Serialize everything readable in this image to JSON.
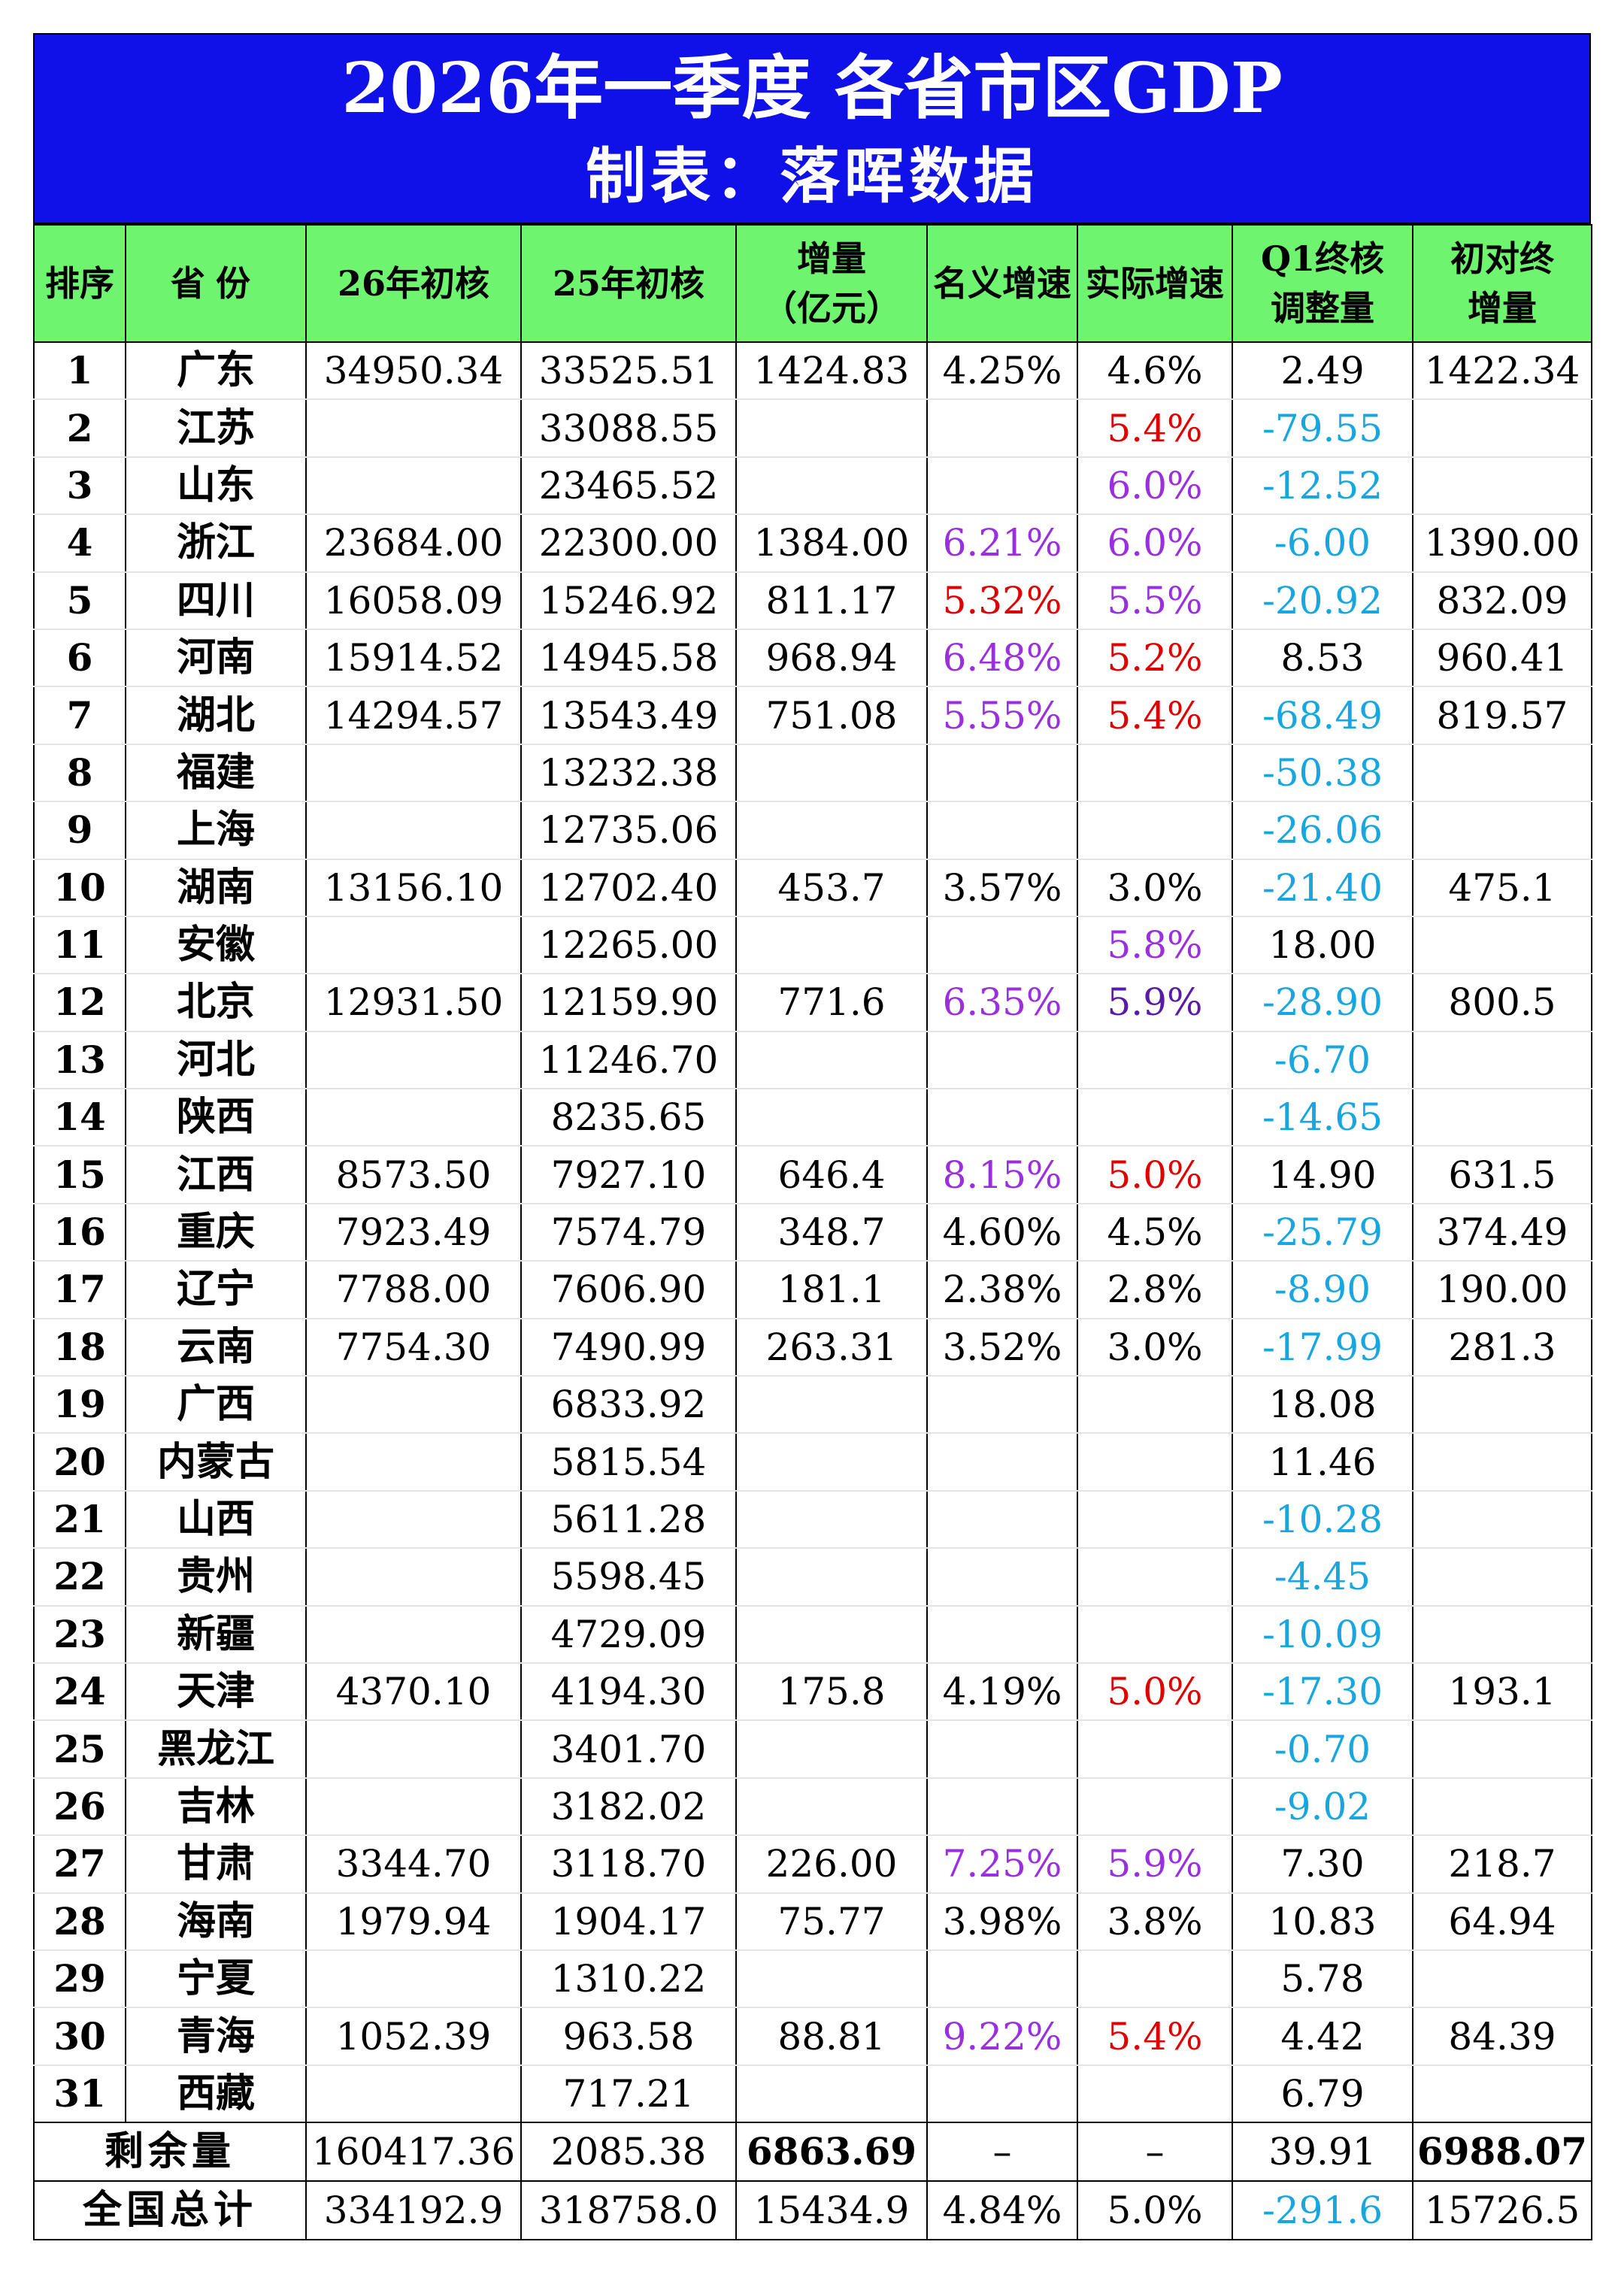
{
  "header": {
    "title": "2026年一季度 各省市区GDP",
    "subtitle": "制表：落晖数据"
  },
  "columns": {
    "rank": "排序",
    "province": "省份",
    "gdp26": "26年初核",
    "gdp25": "25年初核",
    "increase_l1": "增量",
    "increase_l2": "（亿元）",
    "nominal": "名义增速",
    "real": "实际增速",
    "adj_l1": "Q1终核",
    "adj_l2": "调整量",
    "final_l1": "初对终",
    "final_l2": "增量"
  },
  "colors": {
    "header_bg": "#1010e8",
    "column_header_bg": "#6ef46e",
    "red": "#e00000",
    "purple": "#9b2fe0",
    "dark_purple": "#5a1aa8",
    "blue": "#17a7e0"
  },
  "rows": [
    {
      "rank": "1",
      "name": "广东",
      "gdp26": "34950.34",
      "gdp25": "33525.51",
      "inc": "1424.83",
      "nom": "4.25%",
      "nom_c": "black",
      "real": "4.6%",
      "real_c": "black",
      "adj": "2.49",
      "adj_c": "black",
      "fin": "1422.34"
    },
    {
      "rank": "2",
      "name": "江苏",
      "gdp26": "",
      "gdp25": "33088.55",
      "inc": "",
      "nom": "",
      "nom_c": "black",
      "real": "5.4%",
      "real_c": "red",
      "adj": "-79.55",
      "adj_c": "blue",
      "fin": ""
    },
    {
      "rank": "3",
      "name": "山东",
      "gdp26": "",
      "gdp25": "23465.52",
      "inc": "",
      "nom": "",
      "nom_c": "black",
      "real": "6.0%",
      "real_c": "purple",
      "adj": "-12.52",
      "adj_c": "blue",
      "fin": ""
    },
    {
      "rank": "4",
      "name": "浙江",
      "gdp26": "23684.00",
      "gdp25": "22300.00",
      "inc": "1384.00",
      "nom": "6.21%",
      "nom_c": "purple",
      "real": "6.0%",
      "real_c": "purple",
      "adj": "-6.00",
      "adj_c": "blue",
      "fin": "1390.00"
    },
    {
      "rank": "5",
      "name": "四川",
      "gdp26": "16058.09",
      "gdp25": "15246.92",
      "inc": "811.17",
      "nom": "5.32%",
      "nom_c": "red",
      "real": "5.5%",
      "real_c": "purple",
      "adj": "-20.92",
      "adj_c": "blue",
      "fin": "832.09"
    },
    {
      "rank": "6",
      "name": "河南",
      "gdp26": "15914.52",
      "gdp25": "14945.58",
      "inc": "968.94",
      "nom": "6.48%",
      "nom_c": "purple",
      "real": "5.2%",
      "real_c": "red",
      "adj": "8.53",
      "adj_c": "black",
      "fin": "960.41"
    },
    {
      "rank": "7",
      "name": "湖北",
      "gdp26": "14294.57",
      "gdp25": "13543.49",
      "inc": "751.08",
      "nom": "5.55%",
      "nom_c": "purple",
      "real": "5.4%",
      "real_c": "red",
      "adj": "-68.49",
      "adj_c": "blue",
      "fin": "819.57"
    },
    {
      "rank": "8",
      "name": "福建",
      "gdp26": "",
      "gdp25": "13232.38",
      "inc": "",
      "nom": "",
      "nom_c": "black",
      "real": "",
      "real_c": "black",
      "adj": "-50.38",
      "adj_c": "blue",
      "fin": ""
    },
    {
      "rank": "9",
      "name": "上海",
      "gdp26": "",
      "gdp25": "12735.06",
      "inc": "",
      "nom": "",
      "nom_c": "black",
      "real": "",
      "real_c": "black",
      "adj": "-26.06",
      "adj_c": "blue",
      "fin": ""
    },
    {
      "rank": "10",
      "name": "湖南",
      "gdp26": "13156.10",
      "gdp25": "12702.40",
      "inc": "453.7",
      "nom": "3.57%",
      "nom_c": "black",
      "real": "3.0%",
      "real_c": "black",
      "adj": "-21.40",
      "adj_c": "blue",
      "fin": "475.1"
    },
    {
      "rank": "11",
      "name": "安徽",
      "gdp26": "",
      "gdp25": "12265.00",
      "inc": "",
      "nom": "",
      "nom_c": "black",
      "real": "5.8%",
      "real_c": "purple",
      "adj": "18.00",
      "adj_c": "black",
      "fin": ""
    },
    {
      "rank": "12",
      "name": "北京",
      "gdp26": "12931.50",
      "gdp25": "12159.90",
      "inc": "771.6",
      "nom": "6.35%",
      "nom_c": "purple",
      "real": "5.9%",
      "real_c": "darkpurple",
      "adj": "-28.90",
      "adj_c": "blue",
      "fin": "800.5"
    },
    {
      "rank": "13",
      "name": "河北",
      "gdp26": "",
      "gdp25": "11246.70",
      "inc": "",
      "nom": "",
      "nom_c": "black",
      "real": "",
      "real_c": "black",
      "adj": "-6.70",
      "adj_c": "blue",
      "fin": ""
    },
    {
      "rank": "14",
      "name": "陕西",
      "gdp26": "",
      "gdp25": "8235.65",
      "inc": "",
      "nom": "",
      "nom_c": "black",
      "real": "",
      "real_c": "black",
      "adj": "-14.65",
      "adj_c": "blue",
      "fin": ""
    },
    {
      "rank": "15",
      "name": "江西",
      "gdp26": "8573.50",
      "gdp25": "7927.10",
      "inc": "646.4",
      "nom": "8.15%",
      "nom_c": "purple",
      "real": "5.0%",
      "real_c": "red",
      "adj": "14.90",
      "adj_c": "black",
      "fin": "631.5"
    },
    {
      "rank": "16",
      "name": "重庆",
      "gdp26": "7923.49",
      "gdp25": "7574.79",
      "inc": "348.7",
      "nom": "4.60%",
      "nom_c": "black",
      "real": "4.5%",
      "real_c": "black",
      "adj": "-25.79",
      "adj_c": "blue",
      "fin": "374.49"
    },
    {
      "rank": "17",
      "name": "辽宁",
      "gdp26": "7788.00",
      "gdp25": "7606.90",
      "inc": "181.1",
      "nom": "2.38%",
      "nom_c": "black",
      "real": "2.8%",
      "real_c": "black",
      "adj": "-8.90",
      "adj_c": "blue",
      "fin": "190.00"
    },
    {
      "rank": "18",
      "name": "云南",
      "gdp26": "7754.30",
      "gdp25": "7490.99",
      "inc": "263.31",
      "nom": "3.52%",
      "nom_c": "black",
      "real": "3.0%",
      "real_c": "black",
      "adj": "-17.99",
      "adj_c": "blue",
      "fin": "281.3"
    },
    {
      "rank": "19",
      "name": "广西",
      "gdp26": "",
      "gdp25": "6833.92",
      "inc": "",
      "nom": "",
      "nom_c": "black",
      "real": "",
      "real_c": "black",
      "adj": "18.08",
      "adj_c": "black",
      "fin": ""
    },
    {
      "rank": "20",
      "name": "内蒙古",
      "gdp26": "",
      "gdp25": "5815.54",
      "inc": "",
      "nom": "",
      "nom_c": "black",
      "real": "",
      "real_c": "black",
      "adj": "11.46",
      "adj_c": "black",
      "fin": ""
    },
    {
      "rank": "21",
      "name": "山西",
      "gdp26": "",
      "gdp25": "5611.28",
      "inc": "",
      "nom": "",
      "nom_c": "black",
      "real": "",
      "real_c": "black",
      "adj": "-10.28",
      "adj_c": "blue",
      "fin": ""
    },
    {
      "rank": "22",
      "name": "贵州",
      "gdp26": "",
      "gdp25": "5598.45",
      "inc": "",
      "nom": "",
      "nom_c": "black",
      "real": "",
      "real_c": "black",
      "adj": "-4.45",
      "adj_c": "blue",
      "fin": ""
    },
    {
      "rank": "23",
      "name": "新疆",
      "gdp26": "",
      "gdp25": "4729.09",
      "inc": "",
      "nom": "",
      "nom_c": "black",
      "real": "",
      "real_c": "black",
      "adj": "-10.09",
      "adj_c": "blue",
      "fin": ""
    },
    {
      "rank": "24",
      "name": "天津",
      "gdp26": "4370.10",
      "gdp25": "4194.30",
      "inc": "175.8",
      "nom": "4.19%",
      "nom_c": "black",
      "real": "5.0%",
      "real_c": "red",
      "adj": "-17.30",
      "adj_c": "blue",
      "fin": "193.1"
    },
    {
      "rank": "25",
      "name": "黑龙江",
      "gdp26": "",
      "gdp25": "3401.70",
      "inc": "",
      "nom": "",
      "nom_c": "black",
      "real": "",
      "real_c": "black",
      "adj": "-0.70",
      "adj_c": "blue",
      "fin": ""
    },
    {
      "rank": "26",
      "name": "吉林",
      "gdp26": "",
      "gdp25": "3182.02",
      "inc": "",
      "nom": "",
      "nom_c": "black",
      "real": "",
      "real_c": "black",
      "adj": "-9.02",
      "adj_c": "blue",
      "fin": ""
    },
    {
      "rank": "27",
      "name": "甘肃",
      "gdp26": "3344.70",
      "gdp25": "3118.70",
      "inc": "226.00",
      "nom": "7.25%",
      "nom_c": "purple",
      "real": "5.9%",
      "real_c": "purple",
      "adj": "7.30",
      "adj_c": "black",
      "fin": "218.7"
    },
    {
      "rank": "28",
      "name": "海南",
      "gdp26": "1979.94",
      "gdp25": "1904.17",
      "inc": "75.77",
      "nom": "3.98%",
      "nom_c": "black",
      "real": "3.8%",
      "real_c": "black",
      "adj": "10.83",
      "adj_c": "black",
      "fin": "64.94"
    },
    {
      "rank": "29",
      "name": "宁夏",
      "gdp26": "",
      "gdp25": "1310.22",
      "inc": "",
      "nom": "",
      "nom_c": "black",
      "real": "",
      "real_c": "black",
      "adj": "5.78",
      "adj_c": "black",
      "fin": ""
    },
    {
      "rank": "30",
      "name": "青海",
      "gdp26": "1052.39",
      "gdp25": "963.58",
      "inc": "88.81",
      "nom": "9.22%",
      "nom_c": "purple",
      "real": "5.4%",
      "real_c": "red",
      "adj": "4.42",
      "adj_c": "black",
      "fin": "84.39"
    },
    {
      "rank": "31",
      "name": "西藏",
      "gdp26": "",
      "gdp25": "717.21",
      "inc": "",
      "nom": "",
      "nom_c": "black",
      "real": "",
      "real_c": "black",
      "adj": "6.79",
      "adj_c": "black",
      "fin": ""
    }
  ],
  "remaining": {
    "label": "剩余量",
    "gdp26": "160417.36",
    "gdp25": "2085.38",
    "inc": "6863.69",
    "nom": "–",
    "real": "–",
    "adj": "39.91",
    "fin": "6988.07"
  },
  "total": {
    "label": "全国总计",
    "gdp26": "334192.9",
    "gdp25": "318758.0",
    "inc": "15434.9",
    "nom": "4.84%",
    "real": "5.0%",
    "adj": "-291.6",
    "fin": "15726.5"
  }
}
